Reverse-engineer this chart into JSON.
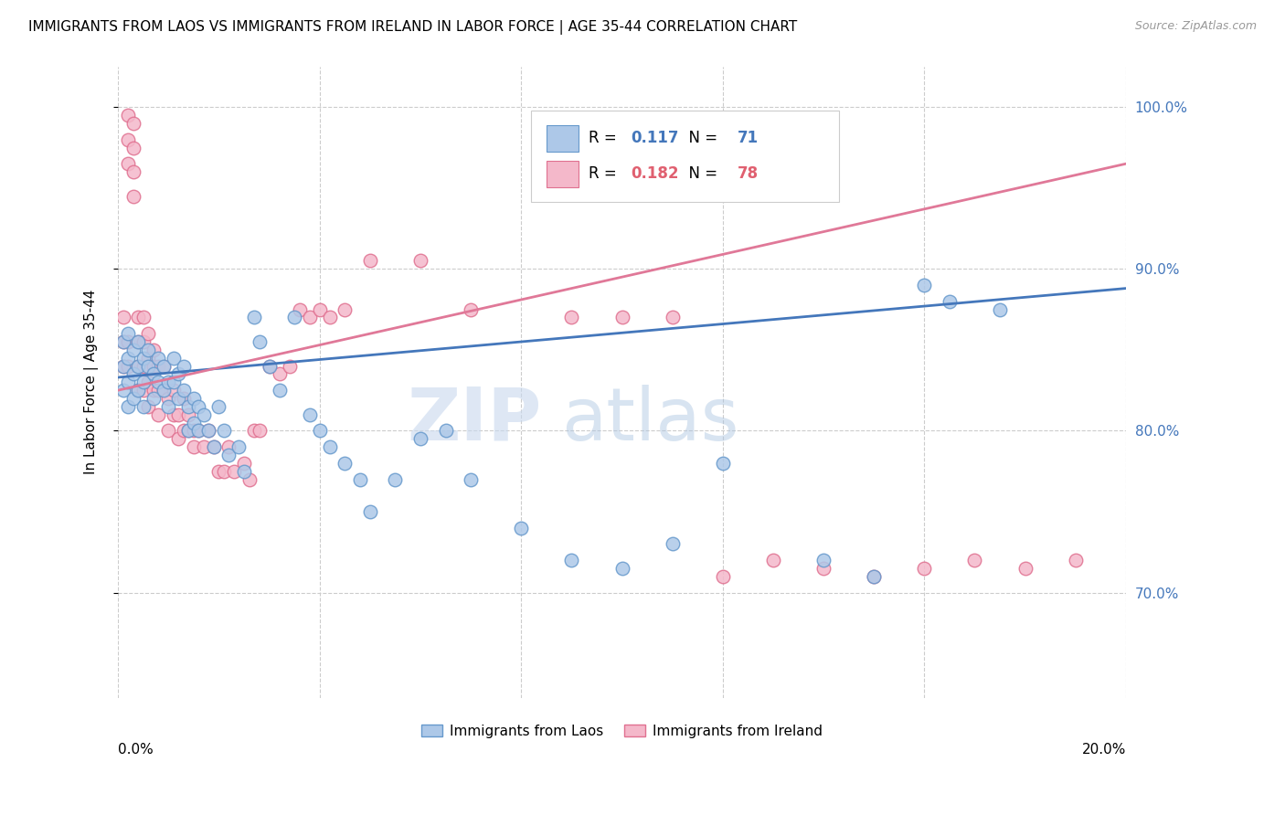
{
  "title": "IMMIGRANTS FROM LAOS VS IMMIGRANTS FROM IRELAND IN LABOR FORCE | AGE 35-44 CORRELATION CHART",
  "source": "Source: ZipAtlas.com",
  "ylabel": "In Labor Force | Age 35-44",
  "xmin": 0.0,
  "xmax": 0.2,
  "ymin": 0.635,
  "ymax": 1.025,
  "laos_color": "#adc8e8",
  "laos_edge_color": "#6699cc",
  "ireland_color": "#f4b8ca",
  "ireland_edge_color": "#e07090",
  "laos_line_color": "#4477bb",
  "ireland_line_color": "#e07898",
  "legend_R_laos": "0.117",
  "legend_N_laos": "71",
  "legend_R_ireland": "0.182",
  "legend_N_ireland": "78",
  "legend_label_laos": "Immigrants from Laos",
  "legend_label_ireland": "Immigrants from Ireland",
  "watermark_zip": "ZIP",
  "watermark_atlas": "atlas",
  "laos_x": [
    0.001,
    0.001,
    0.001,
    0.002,
    0.002,
    0.002,
    0.002,
    0.003,
    0.003,
    0.003,
    0.004,
    0.004,
    0.004,
    0.005,
    0.005,
    0.005,
    0.006,
    0.006,
    0.007,
    0.007,
    0.008,
    0.008,
    0.009,
    0.009,
    0.01,
    0.01,
    0.011,
    0.011,
    0.012,
    0.012,
    0.013,
    0.013,
    0.014,
    0.014,
    0.015,
    0.015,
    0.016,
    0.016,
    0.017,
    0.018,
    0.019,
    0.02,
    0.021,
    0.022,
    0.024,
    0.025,
    0.027,
    0.028,
    0.03,
    0.032,
    0.035,
    0.038,
    0.04,
    0.042,
    0.045,
    0.048,
    0.05,
    0.055,
    0.06,
    0.065,
    0.07,
    0.08,
    0.09,
    0.1,
    0.11,
    0.12,
    0.14,
    0.15,
    0.16,
    0.165,
    0.175
  ],
  "laos_y": [
    0.855,
    0.84,
    0.825,
    0.86,
    0.845,
    0.83,
    0.815,
    0.85,
    0.835,
    0.82,
    0.855,
    0.84,
    0.825,
    0.845,
    0.83,
    0.815,
    0.84,
    0.85,
    0.835,
    0.82,
    0.845,
    0.83,
    0.84,
    0.825,
    0.83,
    0.815,
    0.845,
    0.83,
    0.835,
    0.82,
    0.84,
    0.825,
    0.815,
    0.8,
    0.82,
    0.805,
    0.8,
    0.815,
    0.81,
    0.8,
    0.79,
    0.815,
    0.8,
    0.785,
    0.79,
    0.775,
    0.87,
    0.855,
    0.84,
    0.825,
    0.87,
    0.81,
    0.8,
    0.79,
    0.78,
    0.77,
    0.75,
    0.77,
    0.795,
    0.8,
    0.77,
    0.74,
    0.72,
    0.715,
    0.73,
    0.78,
    0.72,
    0.71,
    0.89,
    0.88,
    0.875
  ],
  "ireland_x": [
    0.001,
    0.001,
    0.001,
    0.002,
    0.002,
    0.002,
    0.002,
    0.002,
    0.003,
    0.003,
    0.003,
    0.003,
    0.004,
    0.004,
    0.004,
    0.004,
    0.005,
    0.005,
    0.005,
    0.005,
    0.006,
    0.006,
    0.006,
    0.006,
    0.007,
    0.007,
    0.007,
    0.008,
    0.008,
    0.008,
    0.009,
    0.009,
    0.01,
    0.01,
    0.011,
    0.011,
    0.012,
    0.012,
    0.013,
    0.013,
    0.014,
    0.014,
    0.015,
    0.015,
    0.016,
    0.017,
    0.018,
    0.019,
    0.02,
    0.021,
    0.022,
    0.023,
    0.025,
    0.026,
    0.027,
    0.028,
    0.03,
    0.032,
    0.034,
    0.036,
    0.038,
    0.04,
    0.042,
    0.045,
    0.05,
    0.06,
    0.07,
    0.09,
    0.1,
    0.11,
    0.12,
    0.13,
    0.14,
    0.15,
    0.16,
    0.17,
    0.18,
    0.19
  ],
  "ireland_y": [
    0.87,
    0.855,
    0.84,
    0.995,
    0.98,
    0.965,
    0.855,
    0.84,
    0.99,
    0.975,
    0.96,
    0.945,
    0.87,
    0.855,
    0.84,
    0.825,
    0.87,
    0.855,
    0.84,
    0.825,
    0.86,
    0.845,
    0.83,
    0.815,
    0.85,
    0.84,
    0.825,
    0.84,
    0.825,
    0.81,
    0.84,
    0.825,
    0.82,
    0.8,
    0.825,
    0.81,
    0.81,
    0.795,
    0.82,
    0.8,
    0.81,
    0.8,
    0.8,
    0.79,
    0.8,
    0.79,
    0.8,
    0.79,
    0.775,
    0.775,
    0.79,
    0.775,
    0.78,
    0.77,
    0.8,
    0.8,
    0.84,
    0.835,
    0.84,
    0.875,
    0.87,
    0.875,
    0.87,
    0.875,
    0.905,
    0.905,
    0.875,
    0.87,
    0.87,
    0.87,
    0.71,
    0.72,
    0.715,
    0.71,
    0.715,
    0.72,
    0.715,
    0.72
  ]
}
